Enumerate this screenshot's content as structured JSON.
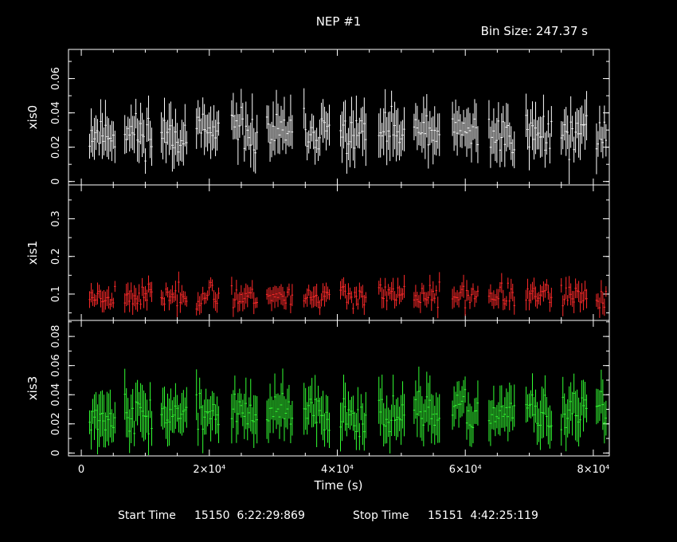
{
  "header": {
    "title": "NEP #1",
    "bin_size": "Bin Size: 247.37 s"
  },
  "footer": {
    "start_label": "Start Time",
    "start_value": "15150  6:22:29:869",
    "stop_label": "Stop Time",
    "stop_value": "15151  4:42:25:119"
  },
  "colors": {
    "background": "#000000",
    "frame": "#ffffff",
    "xis0": "#ffffff",
    "xis1": "#ff2a2a",
    "xis3": "#33ff33"
  },
  "chart_data": {
    "type": "scatter",
    "title": "NEP #1",
    "xlabel": "Time (s)",
    "xlim": [
      -2000,
      82500
    ],
    "x_ticks": [
      {
        "value": 0,
        "label": "0"
      },
      {
        "value": 20000,
        "label": "2×10⁴"
      },
      {
        "value": 40000,
        "label": "4×10⁴"
      },
      {
        "value": 60000,
        "label": "6×10⁴"
      },
      {
        "value": 80000,
        "label": "8×10⁴"
      }
    ],
    "bin_size_s": 247.37,
    "segments": [
      [
        1300,
        5300
      ],
      [
        6800,
        11100
      ],
      [
        12500,
        16500
      ],
      [
        18000,
        21500
      ],
      [
        23500,
        27500
      ],
      [
        29000,
        33000
      ],
      [
        34800,
        38800
      ],
      [
        40500,
        44500
      ],
      [
        46500,
        50500
      ],
      [
        52000,
        56000
      ],
      [
        58000,
        62000
      ],
      [
        63700,
        67700
      ],
      [
        69500,
        73500
      ],
      [
        75000,
        79000
      ],
      [
        80500,
        82000
      ]
    ],
    "panels": [
      {
        "name": "xis0",
        "ylabel": "xis0",
        "ylim": [
          -0.002,
          0.077
        ],
        "y_ticks": [
          0,
          0.02,
          0.04,
          0.06
        ],
        "y_tick_labels": [
          "0",
          "0.02",
          "0.04",
          "0.06"
        ],
        "color": "#ffffff",
        "mean": 0.028,
        "spread": 0.011,
        "err": 0.011,
        "seed": 11
      },
      {
        "name": "xis1",
        "ylabel": "xis1",
        "ylim": [
          0.03,
          0.39
        ],
        "y_ticks": [
          0.1,
          0.2,
          0.3
        ],
        "y_tick_labels": [
          "0.1",
          "0.2",
          "0.3"
        ],
        "color": "#ff2a2a",
        "mean": 0.095,
        "spread": 0.028,
        "err": 0.022,
        "seed": 23
      },
      {
        "name": "xis3",
        "ylabel": "xis3",
        "ylim": [
          -0.002,
          0.091
        ],
        "y_ticks": [
          0,
          0.02,
          0.04,
          0.06,
          0.08
        ],
        "y_tick_labels": [
          "0",
          "0.02",
          "0.04",
          "0.06",
          "0.08"
        ],
        "color": "#33ff33",
        "mean": 0.027,
        "spread": 0.012,
        "err": 0.013,
        "seed": 37
      }
    ]
  }
}
